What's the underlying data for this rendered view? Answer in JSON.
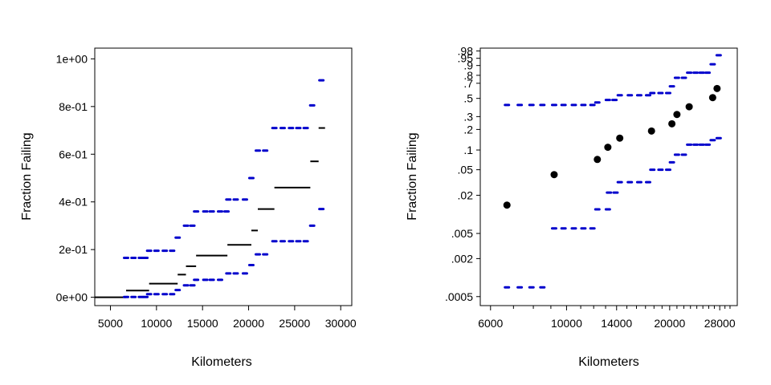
{
  "colors": {
    "band": "#0000cc",
    "estimate": "#000000",
    "axis": "#000000",
    "background": "#ffffff"
  },
  "chart_data": [
    {
      "type": "scatter",
      "xlabel": "Kilometers",
      "ylabel": "Fraction Failing",
      "xscale": "linear",
      "yscale": "linear",
      "xlim": [
        3300,
        31200
      ],
      "ylim": [
        -0.035,
        1.045
      ],
      "xticks": [
        5000,
        10000,
        15000,
        20000,
        25000,
        30000
      ],
      "xtick_labels": [
        "5000",
        "10000",
        "15000",
        "20000",
        "25000",
        "30000"
      ],
      "yticks": [
        0,
        0.2,
        0.4,
        0.6,
        0.8,
        1.0
      ],
      "ytick_labels": [
        "0e+00",
        "2e-01",
        "4e-01",
        "6e-01",
        "8e-01",
        "1e+00"
      ],
      "series": [
        {
          "role": "estimate-step",
          "style": "step-segments",
          "points": [
            {
              "x0": 3300,
              "x1": 6700,
              "y": 0.0
            },
            {
              "x0": 6700,
              "x1": 9200,
              "y": 0.028
            },
            {
              "x0": 9200,
              "x1": 12300,
              "y": 0.057
            },
            {
              "x0": 12300,
              "x1": 13200,
              "y": 0.095
            },
            {
              "x0": 13200,
              "x1": 14300,
              "y": 0.13
            },
            {
              "x0": 14300,
              "x1": 17700,
              "y": 0.175
            },
            {
              "x0": 17700,
              "x1": 20300,
              "y": 0.22
            },
            {
              "x0": 20300,
              "x1": 21000,
              "y": 0.28
            },
            {
              "x0": 21000,
              "x1": 22800,
              "y": 0.37
            },
            {
              "x0": 22800,
              "x1": 26700,
              "y": 0.46
            },
            {
              "x0": 26700,
              "x1": 27600,
              "y": 0.57
            },
            {
              "x0": 27600,
              "x1": 28300,
              "y": 0.71
            }
          ]
        },
        {
          "role": "upper-band",
          "style": "dash-points",
          "points": [
            {
              "x": 6700,
              "y": 0.165
            },
            {
              "x": 7500,
              "y": 0.165
            },
            {
              "x": 8300,
              "y": 0.165
            },
            {
              "x": 8800,
              "y": 0.165
            },
            {
              "x": 9200,
              "y": 0.195
            },
            {
              "x": 10000,
              "y": 0.195
            },
            {
              "x": 10900,
              "y": 0.195
            },
            {
              "x": 11700,
              "y": 0.195
            },
            {
              "x": 12300,
              "y": 0.25
            },
            {
              "x": 13200,
              "y": 0.3
            },
            {
              "x": 13900,
              "y": 0.3
            },
            {
              "x": 14300,
              "y": 0.36
            },
            {
              "x": 15300,
              "y": 0.36
            },
            {
              "x": 16000,
              "y": 0.36
            },
            {
              "x": 16900,
              "y": 0.36
            },
            {
              "x": 17600,
              "y": 0.36
            },
            {
              "x": 17800,
              "y": 0.41
            },
            {
              "x": 18600,
              "y": 0.41
            },
            {
              "x": 19600,
              "y": 0.41
            },
            {
              "x": 20300,
              "y": 0.5
            },
            {
              "x": 21000,
              "y": 0.615
            },
            {
              "x": 21800,
              "y": 0.615
            },
            {
              "x": 22800,
              "y": 0.71
            },
            {
              "x": 23700,
              "y": 0.71
            },
            {
              "x": 24600,
              "y": 0.71
            },
            {
              "x": 25400,
              "y": 0.71
            },
            {
              "x": 26200,
              "y": 0.71
            },
            {
              "x": 26900,
              "y": 0.805
            },
            {
              "x": 27900,
              "y": 0.91
            }
          ]
        },
        {
          "role": "lower-band",
          "style": "dash-points",
          "points": [
            {
              "x": 6700,
              "y": 0.001
            },
            {
              "x": 7500,
              "y": 0.001
            },
            {
              "x": 8300,
              "y": 0.001
            },
            {
              "x": 8800,
              "y": 0.001
            },
            {
              "x": 9200,
              "y": 0.013
            },
            {
              "x": 10000,
              "y": 0.013
            },
            {
              "x": 10900,
              "y": 0.013
            },
            {
              "x": 11700,
              "y": 0.013
            },
            {
              "x": 12300,
              "y": 0.03
            },
            {
              "x": 13200,
              "y": 0.05
            },
            {
              "x": 13900,
              "y": 0.05
            },
            {
              "x": 14300,
              "y": 0.073
            },
            {
              "x": 15300,
              "y": 0.073
            },
            {
              "x": 16000,
              "y": 0.073
            },
            {
              "x": 16900,
              "y": 0.073
            },
            {
              "x": 17800,
              "y": 0.1
            },
            {
              "x": 18600,
              "y": 0.1
            },
            {
              "x": 19600,
              "y": 0.1
            },
            {
              "x": 20300,
              "y": 0.135
            },
            {
              "x": 21000,
              "y": 0.18
            },
            {
              "x": 21800,
              "y": 0.18
            },
            {
              "x": 22800,
              "y": 0.235
            },
            {
              "x": 23700,
              "y": 0.235
            },
            {
              "x": 24600,
              "y": 0.235
            },
            {
              "x": 25400,
              "y": 0.235
            },
            {
              "x": 26200,
              "y": 0.235
            },
            {
              "x": 26900,
              "y": 0.3
            },
            {
              "x": 27900,
              "y": 0.37
            }
          ]
        }
      ]
    },
    {
      "type": "scatter",
      "xlabel": "Kilometers",
      "ylabel": "Fraction Failing",
      "xscale": "log",
      "yscale": "weibull-probability",
      "xlim": [
        5600,
        31500
      ],
      "ylim": [
        0.00036,
        0.987
      ],
      "xticks": [
        6000,
        10000,
        14000,
        20000,
        28000
      ],
      "xtick_labels": [
        "6000",
        "10000",
        "14000",
        "20000",
        "28000"
      ],
      "xminor": [
        7000,
        8000,
        9000,
        11000,
        12000,
        13000,
        15000,
        16000,
        17000,
        18000,
        19000,
        21000,
        22000,
        23000,
        24000,
        25000,
        26000,
        27000,
        29000,
        30000
      ],
      "yticks": [
        0.0005,
        0.002,
        0.005,
        0.02,
        0.05,
        0.1,
        0.2,
        0.3,
        0.5,
        0.7,
        0.8,
        0.9,
        0.95,
        0.98
      ],
      "ytick_labels": [
        ".0005",
        ".002",
        ".005",
        ".02",
        ".05",
        ".1",
        ".2",
        ".3",
        ".5",
        ".7",
        ".8",
        ".9",
        ".95",
        ".98"
      ],
      "series": [
        {
          "role": "estimate",
          "style": "dots",
          "points": [
            {
              "x": 6700,
              "y": 0.014
            },
            {
              "x": 9200,
              "y": 0.042
            },
            {
              "x": 12300,
              "y": 0.072
            },
            {
              "x": 13200,
              "y": 0.11
            },
            {
              "x": 14300,
              "y": 0.15
            },
            {
              "x": 17700,
              "y": 0.19
            },
            {
              "x": 20300,
              "y": 0.24
            },
            {
              "x": 21000,
              "y": 0.32
            },
            {
              "x": 22800,
              "y": 0.4
            },
            {
              "x": 26700,
              "y": 0.51
            },
            {
              "x": 27500,
              "y": 0.63
            }
          ]
        },
        {
          "role": "upper-band",
          "style": "dash-points",
          "points": [
            {
              "x": 6700,
              "y": 0.42
            },
            {
              "x": 7300,
              "y": 0.42
            },
            {
              "x": 7900,
              "y": 0.42
            },
            {
              "x": 8500,
              "y": 0.42
            },
            {
              "x": 9200,
              "y": 0.42
            },
            {
              "x": 9800,
              "y": 0.42
            },
            {
              "x": 10500,
              "y": 0.42
            },
            {
              "x": 11200,
              "y": 0.42
            },
            {
              "x": 11900,
              "y": 0.42
            },
            {
              "x": 12300,
              "y": 0.45
            },
            {
              "x": 13200,
              "y": 0.48
            },
            {
              "x": 13800,
              "y": 0.48
            },
            {
              "x": 14300,
              "y": 0.54
            },
            {
              "x": 15300,
              "y": 0.54
            },
            {
              "x": 16300,
              "y": 0.54
            },
            {
              "x": 17300,
              "y": 0.54
            },
            {
              "x": 17800,
              "y": 0.57
            },
            {
              "x": 18800,
              "y": 0.57
            },
            {
              "x": 19800,
              "y": 0.57
            },
            {
              "x": 20300,
              "y": 0.66
            },
            {
              "x": 21000,
              "y": 0.77
            },
            {
              "x": 22000,
              "y": 0.77
            },
            {
              "x": 22800,
              "y": 0.83
            },
            {
              "x": 23800,
              "y": 0.83
            },
            {
              "x": 24800,
              "y": 0.83
            },
            {
              "x": 25800,
              "y": 0.83
            },
            {
              "x": 26700,
              "y": 0.91
            },
            {
              "x": 27800,
              "y": 0.965
            }
          ]
        },
        {
          "role": "lower-band",
          "style": "dash-points",
          "points": [
            {
              "x": 6700,
              "y": 0.0007
            },
            {
              "x": 7300,
              "y": 0.0007
            },
            {
              "x": 7900,
              "y": 0.0007
            },
            {
              "x": 8500,
              "y": 0.0007
            },
            {
              "x": 9200,
              "y": 0.006
            },
            {
              "x": 9800,
              "y": 0.006
            },
            {
              "x": 10500,
              "y": 0.006
            },
            {
              "x": 11200,
              "y": 0.006
            },
            {
              "x": 11900,
              "y": 0.006
            },
            {
              "x": 12300,
              "y": 0.012
            },
            {
              "x": 13200,
              "y": 0.012
            },
            {
              "x": 13300,
              "y": 0.022
            },
            {
              "x": 13900,
              "y": 0.022
            },
            {
              "x": 14300,
              "y": 0.032
            },
            {
              "x": 15300,
              "y": 0.032
            },
            {
              "x": 16300,
              "y": 0.032
            },
            {
              "x": 17300,
              "y": 0.032
            },
            {
              "x": 17800,
              "y": 0.05
            },
            {
              "x": 18800,
              "y": 0.05
            },
            {
              "x": 19800,
              "y": 0.05
            },
            {
              "x": 20300,
              "y": 0.065
            },
            {
              "x": 21000,
              "y": 0.085
            },
            {
              "x": 22000,
              "y": 0.085
            },
            {
              "x": 22800,
              "y": 0.12
            },
            {
              "x": 23800,
              "y": 0.12
            },
            {
              "x": 24800,
              "y": 0.12
            },
            {
              "x": 25800,
              "y": 0.12
            },
            {
              "x": 26700,
              "y": 0.14
            },
            {
              "x": 27800,
              "y": 0.15
            }
          ]
        }
      ]
    }
  ]
}
